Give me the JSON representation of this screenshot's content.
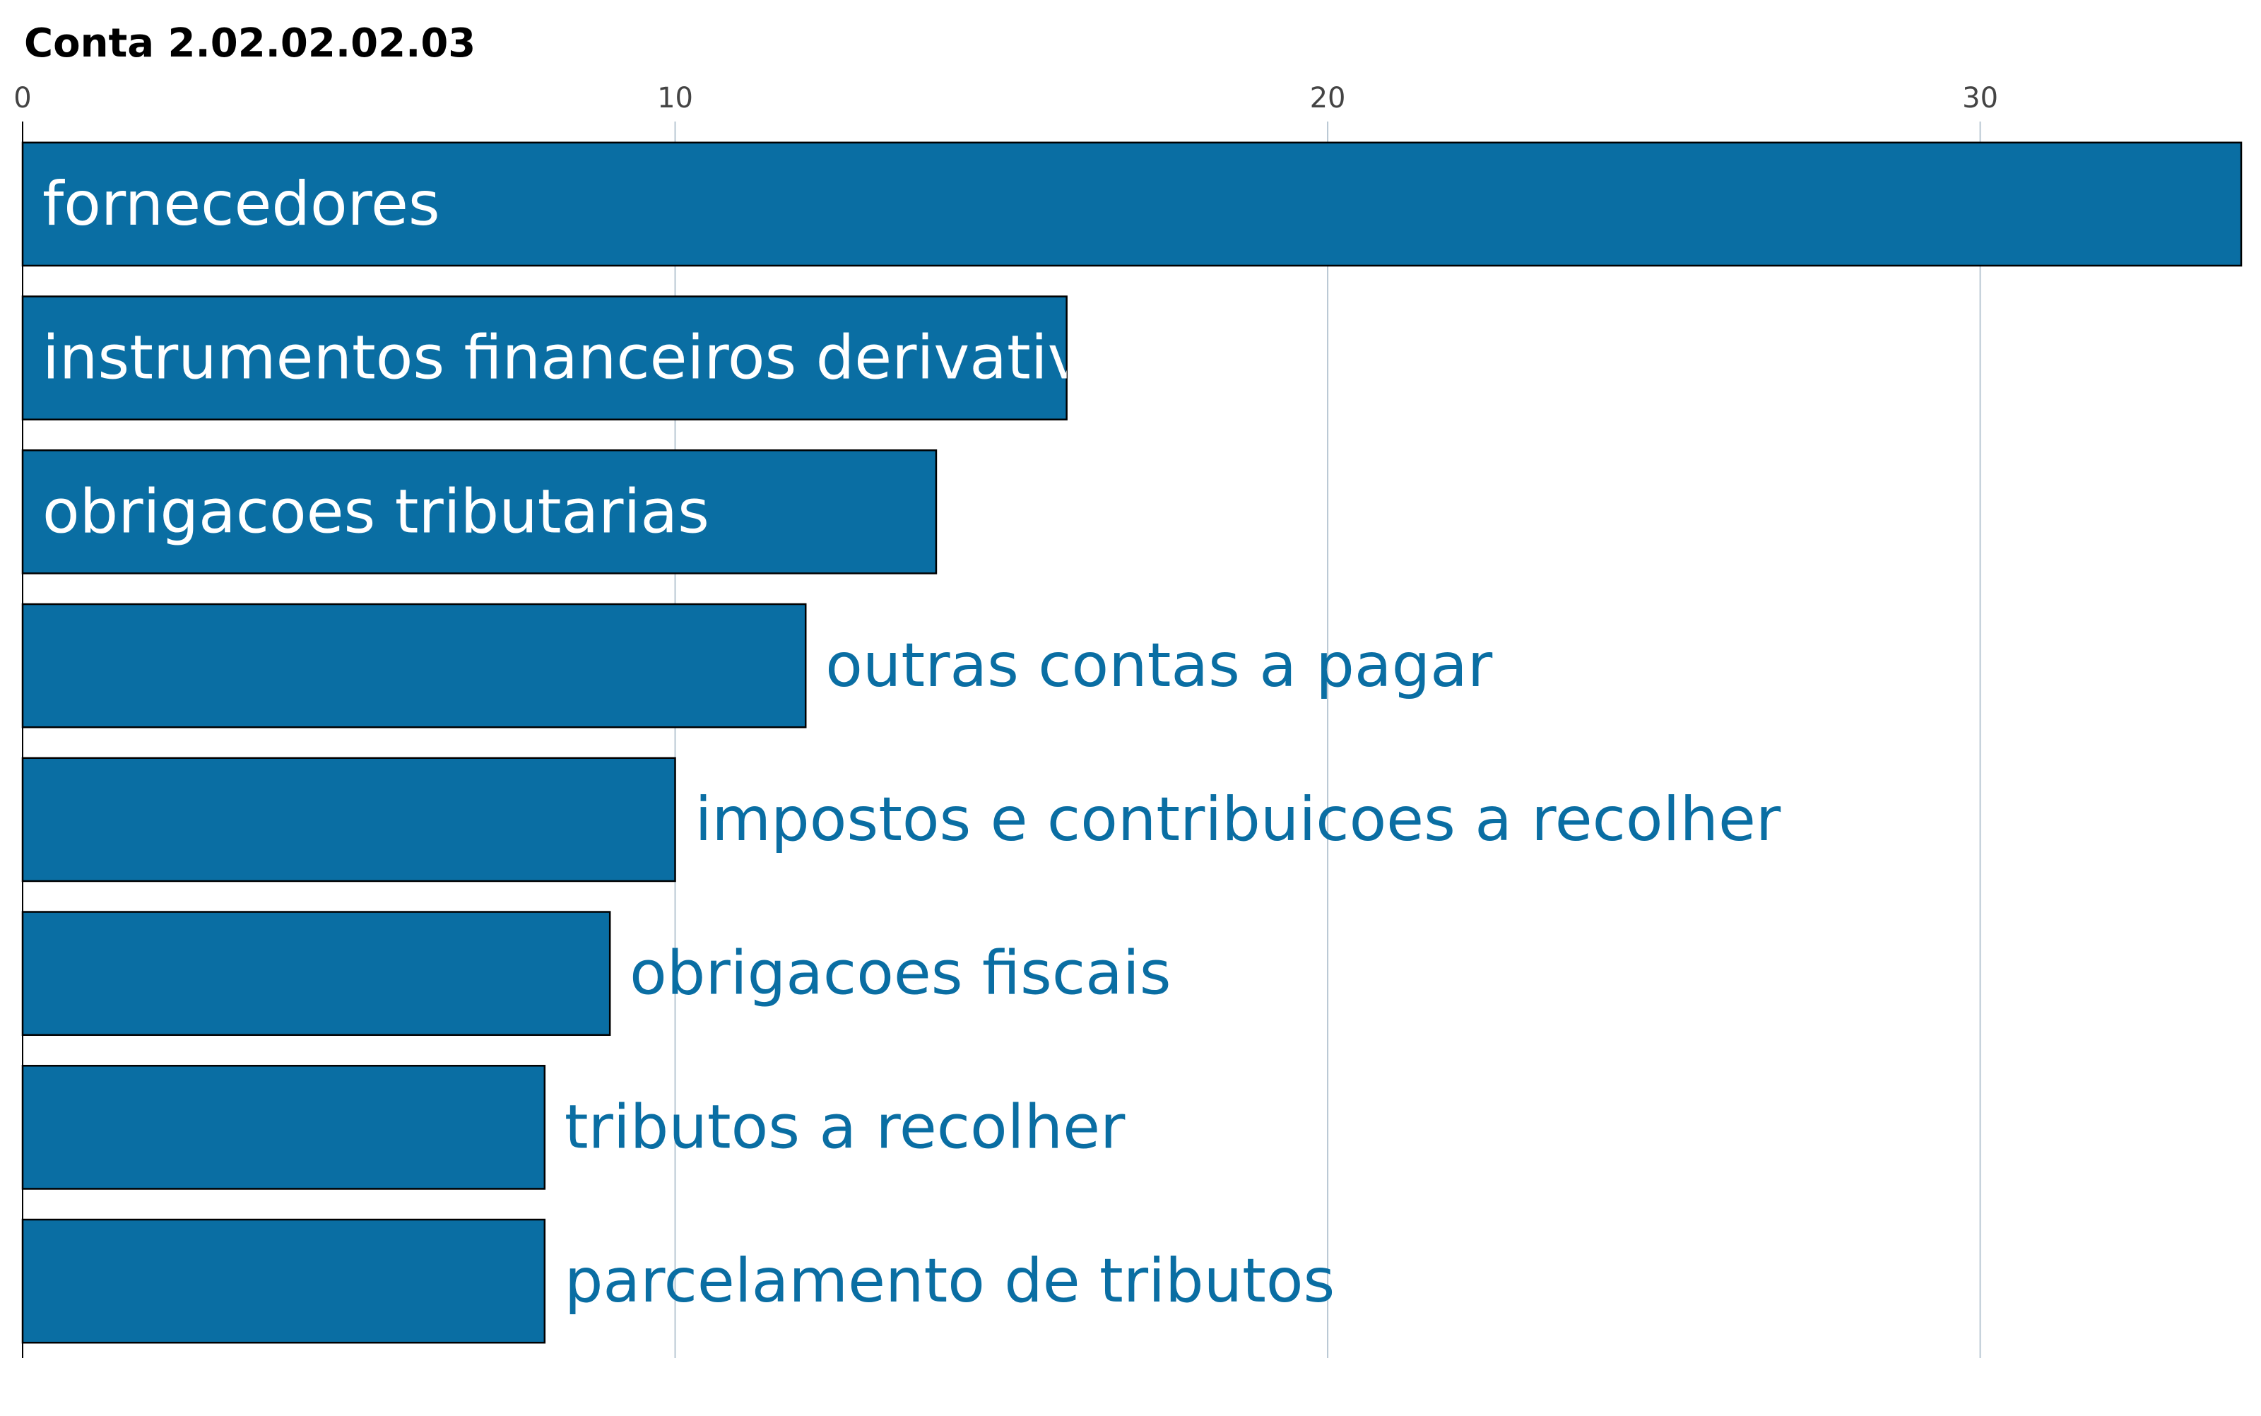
{
  "chart_data": {
    "type": "bar",
    "orientation": "horizontal",
    "title": "Conta 2.02.02.02.03",
    "xlabel": "",
    "ylabel": "",
    "xlim": [
      0,
      34
    ],
    "ticks": [
      0,
      10,
      20,
      30
    ],
    "grid": true,
    "bar_color": "#0a6ea3",
    "label_color_inside": "#ffffff",
    "label_color_outside": "#0a6ea3",
    "categories": [
      "fornecedores",
      "instrumentos financeiros derivativos",
      "obrigacoes tributarias",
      "outras contas a pagar",
      "impostos e contribuicoes a recolher",
      "obrigacoes fiscais",
      "tributos a recolher",
      "parcelamento de tributos"
    ],
    "values": [
      34,
      16,
      14,
      12,
      10,
      9,
      8,
      8
    ]
  }
}
